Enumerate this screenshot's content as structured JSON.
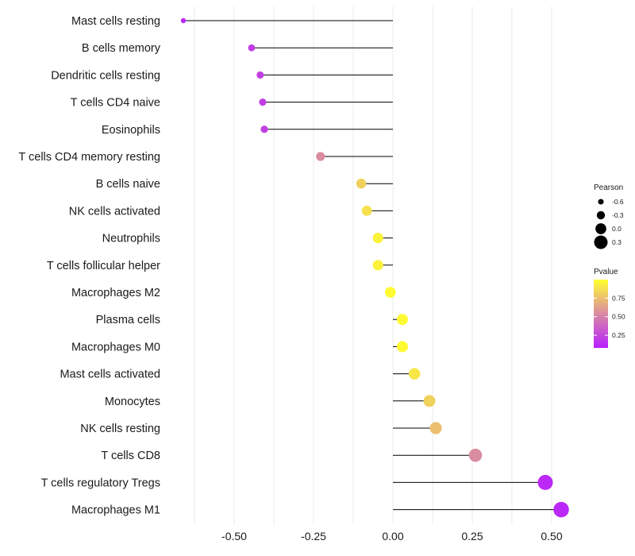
{
  "chart_data": {
    "type": "lollipop",
    "title": "",
    "xlabel": "",
    "ylabel": "",
    "xlim": [
      -0.7,
      0.55
    ],
    "xticks": [
      -0.5,
      -0.25,
      0.0,
      0.25,
      0.5
    ],
    "xtick_labels": [
      "-0.50",
      "-0.25",
      "0.00",
      "0.25",
      "0.50"
    ],
    "categories": [
      "Mast cells resting",
      "B cells memory",
      "Dendritic cells resting",
      "T cells CD4 naive",
      "Eosinophils",
      "T cells CD4 memory resting",
      "B cells naive",
      "NK cells activated",
      "Neutrophils",
      "T cells follicular helper",
      "Macrophages M2",
      "Plasma cells",
      "Macrophages M0",
      "Mast cells activated",
      "Monocytes",
      "NK cells resting",
      "T cells CD8",
      "T cells regulatory  Tregs",
      "Macrophages M1"
    ],
    "values": [
      -0.66,
      -0.445,
      -0.418,
      -0.41,
      -0.405,
      -0.228,
      -0.1,
      -0.082,
      -0.047,
      -0.047,
      -0.008,
      0.03,
      0.03,
      0.068,
      0.115,
      0.135,
      0.26,
      0.48,
      0.53
    ],
    "pvalues": [
      0.12,
      0.2,
      0.22,
      0.22,
      0.22,
      0.55,
      0.82,
      0.88,
      0.95,
      0.95,
      0.99,
      0.98,
      0.98,
      0.9,
      0.82,
      0.75,
      0.55,
      0.12,
      0.12
    ],
    "size_legend": {
      "title": "Pearson",
      "labels": [
        "-0.6",
        "-0.3",
        "0.0",
        "0.3"
      ],
      "values": [
        -0.6,
        -0.3,
        0.0,
        0.3
      ]
    },
    "color_legend": {
      "title": "Pvalue",
      "labels": [
        "0.75",
        "0.50",
        "0.25"
      ],
      "values": [
        0.75,
        0.5,
        0.25
      ],
      "range": [
        0.08,
        1.0
      ],
      "low_color": "#b81fff",
      "mid_color": "#d98aa3",
      "high_color": "#ffff2e"
    },
    "stem_color": "#000000",
    "grid_color": "#ebebeb"
  }
}
